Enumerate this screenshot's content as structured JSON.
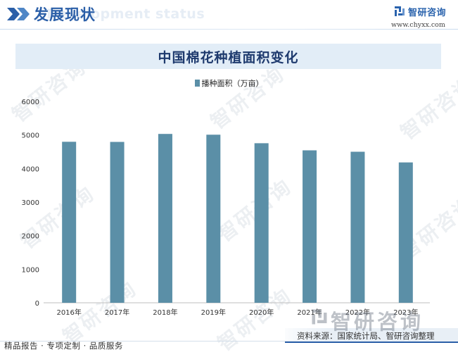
{
  "header": {
    "title": "发展现状",
    "subtitle_en": "Development status"
  },
  "logo": {
    "name": "智研咨询",
    "url": "www.chyxx.com"
  },
  "chart_data": {
    "type": "bar",
    "title": "中国棉花种植面积变化",
    "categories": [
      "2016年",
      "2017年",
      "2018年",
      "2019年",
      "2020年",
      "2021年",
      "2022年",
      "2023年"
    ],
    "series": [
      {
        "name": "播种面积（万亩）",
        "values": [
          4797,
          4793,
          5031,
          5008,
          4754,
          4542,
          4500,
          4182
        ]
      }
    ],
    "xlabel": "",
    "ylabel": "",
    "ylim": [
      0,
      6000
    ],
    "yticks": [
      0,
      1000,
      2000,
      3000,
      4000,
      5000,
      6000
    ],
    "grid": false,
    "legend": "top-center",
    "colors": {
      "bar": "#5b8fa7"
    }
  },
  "footer": {
    "tagline": "精品报告 · 专项定制 · 品质服务",
    "source": "资料来源：国家统计局、智研咨询整理"
  },
  "watermark": "智研咨询",
  "colors": {
    "accent": "#2b5fa8",
    "banner_bg": "#e2edf7",
    "title_text": "#1e3a6e"
  }
}
